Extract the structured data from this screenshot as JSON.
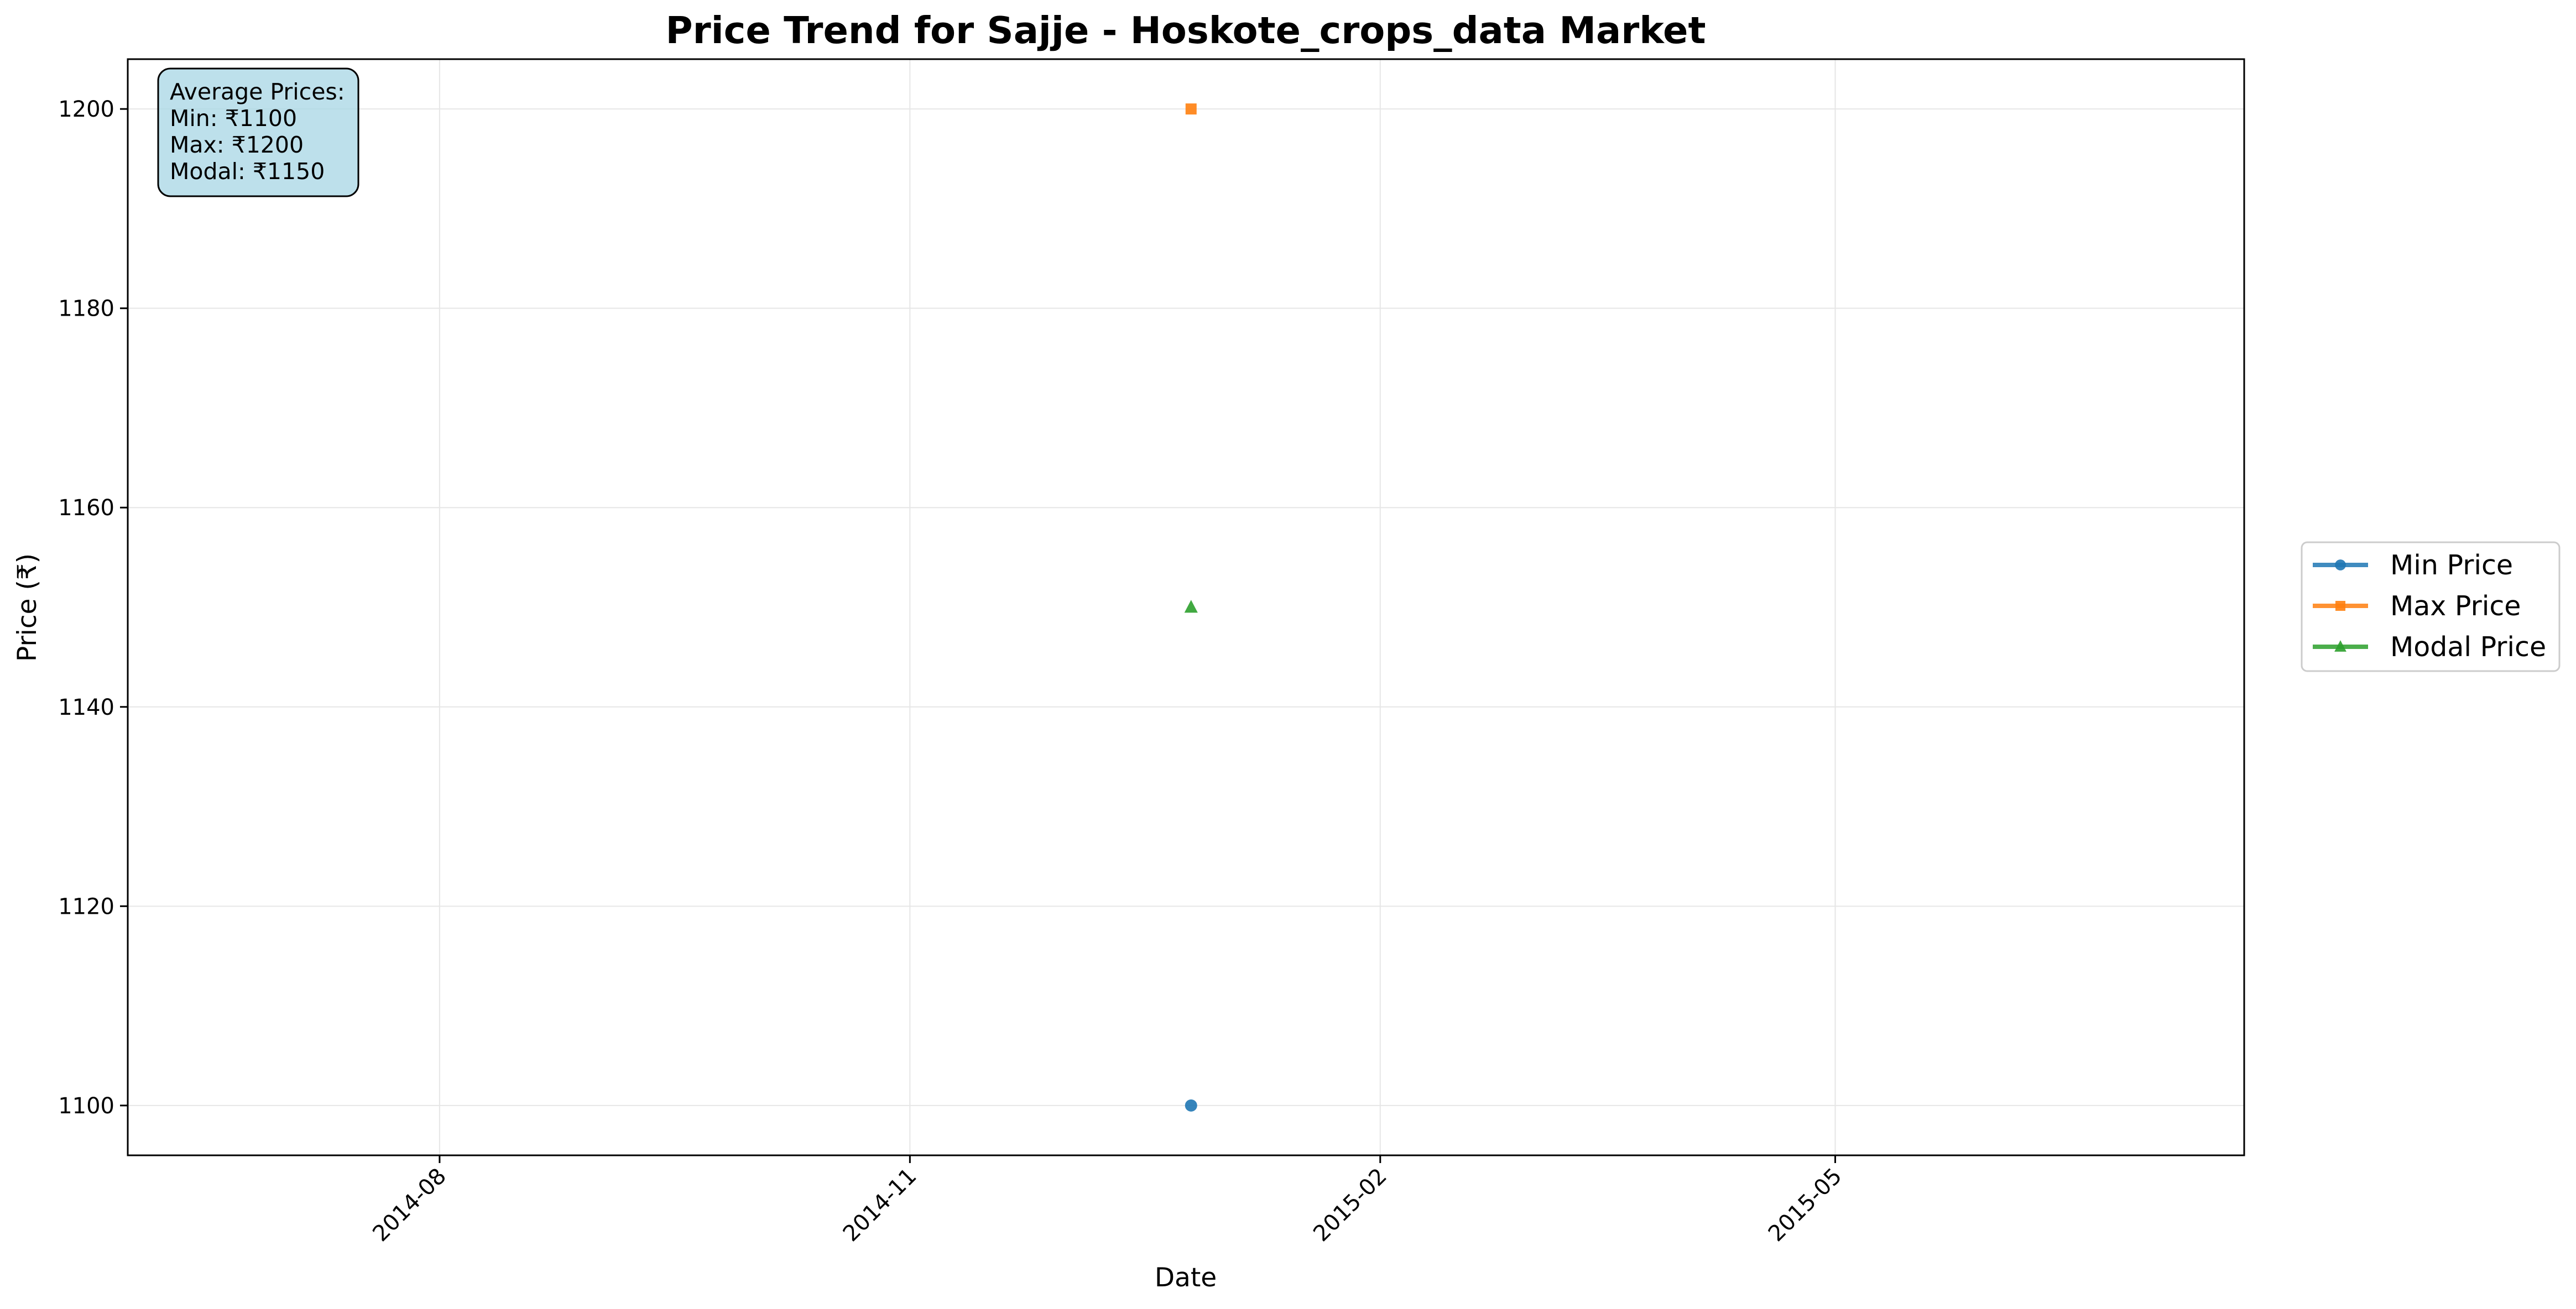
{
  "chart_data": {
    "type": "scatter",
    "title": "Price Trend for Sajje - Hoskote_crops_data Market",
    "xlabel": "Date",
    "ylabel": "Price (₹)",
    "x_ticks": [
      "2014-08",
      "2014-11",
      "2015-02",
      "2015-05"
    ],
    "y_ticks": [
      1100,
      1120,
      1140,
      1160,
      1180,
      1200
    ],
    "xlim": [
      "2014-06-01",
      "2015-07-20"
    ],
    "ylim": [
      1095,
      1205
    ],
    "grid": true,
    "legend_position": "right, outside plot",
    "series": [
      {
        "name": "Min Price",
        "marker": "circle",
        "color": "#1f77b4",
        "points": [
          {
            "x": "2014-12-26",
            "y": 1100
          }
        ]
      },
      {
        "name": "Max Price",
        "marker": "square",
        "color": "#ff7f0e",
        "points": [
          {
            "x": "2014-12-26",
            "y": 1200
          }
        ]
      },
      {
        "name": "Modal Price",
        "marker": "triangle",
        "color": "#2ca02c",
        "points": [
          {
            "x": "2014-12-26",
            "y": 1150
          }
        ]
      }
    ],
    "annotation": {
      "heading": "Average Prices:",
      "lines": [
        "Min: ₹1100",
        "Max: ₹1200",
        "Modal: ₹1150"
      ],
      "background": "#add8e6"
    }
  }
}
